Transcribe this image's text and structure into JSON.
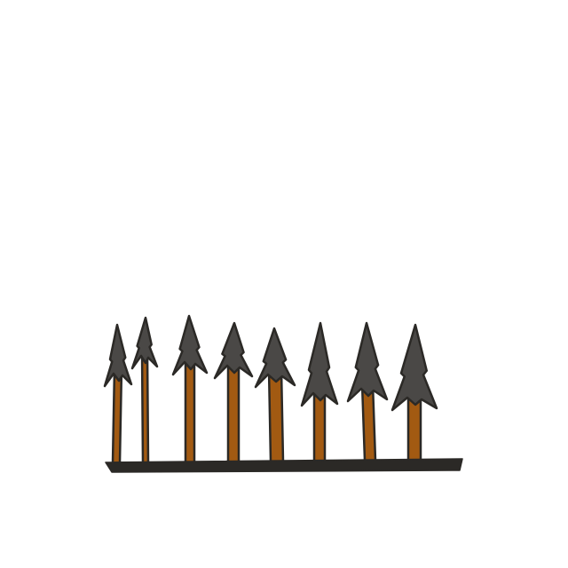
{
  "scene": {
    "subject": "spike-row",
    "colors": {
      "background": "#ffffff",
      "shaft": "#a25a12",
      "head": "#4a4846",
      "outline": "#2b2926",
      "base": "#2b2926"
    },
    "spikes": [
      {
        "kind": "spear"
      },
      {
        "kind": "spear"
      },
      {
        "kind": "spear"
      },
      {
        "kind": "spear"
      },
      {
        "kind": "spear"
      },
      {
        "kind": "spear"
      },
      {
        "kind": "spear"
      },
      {
        "kind": "spear"
      }
    ]
  }
}
